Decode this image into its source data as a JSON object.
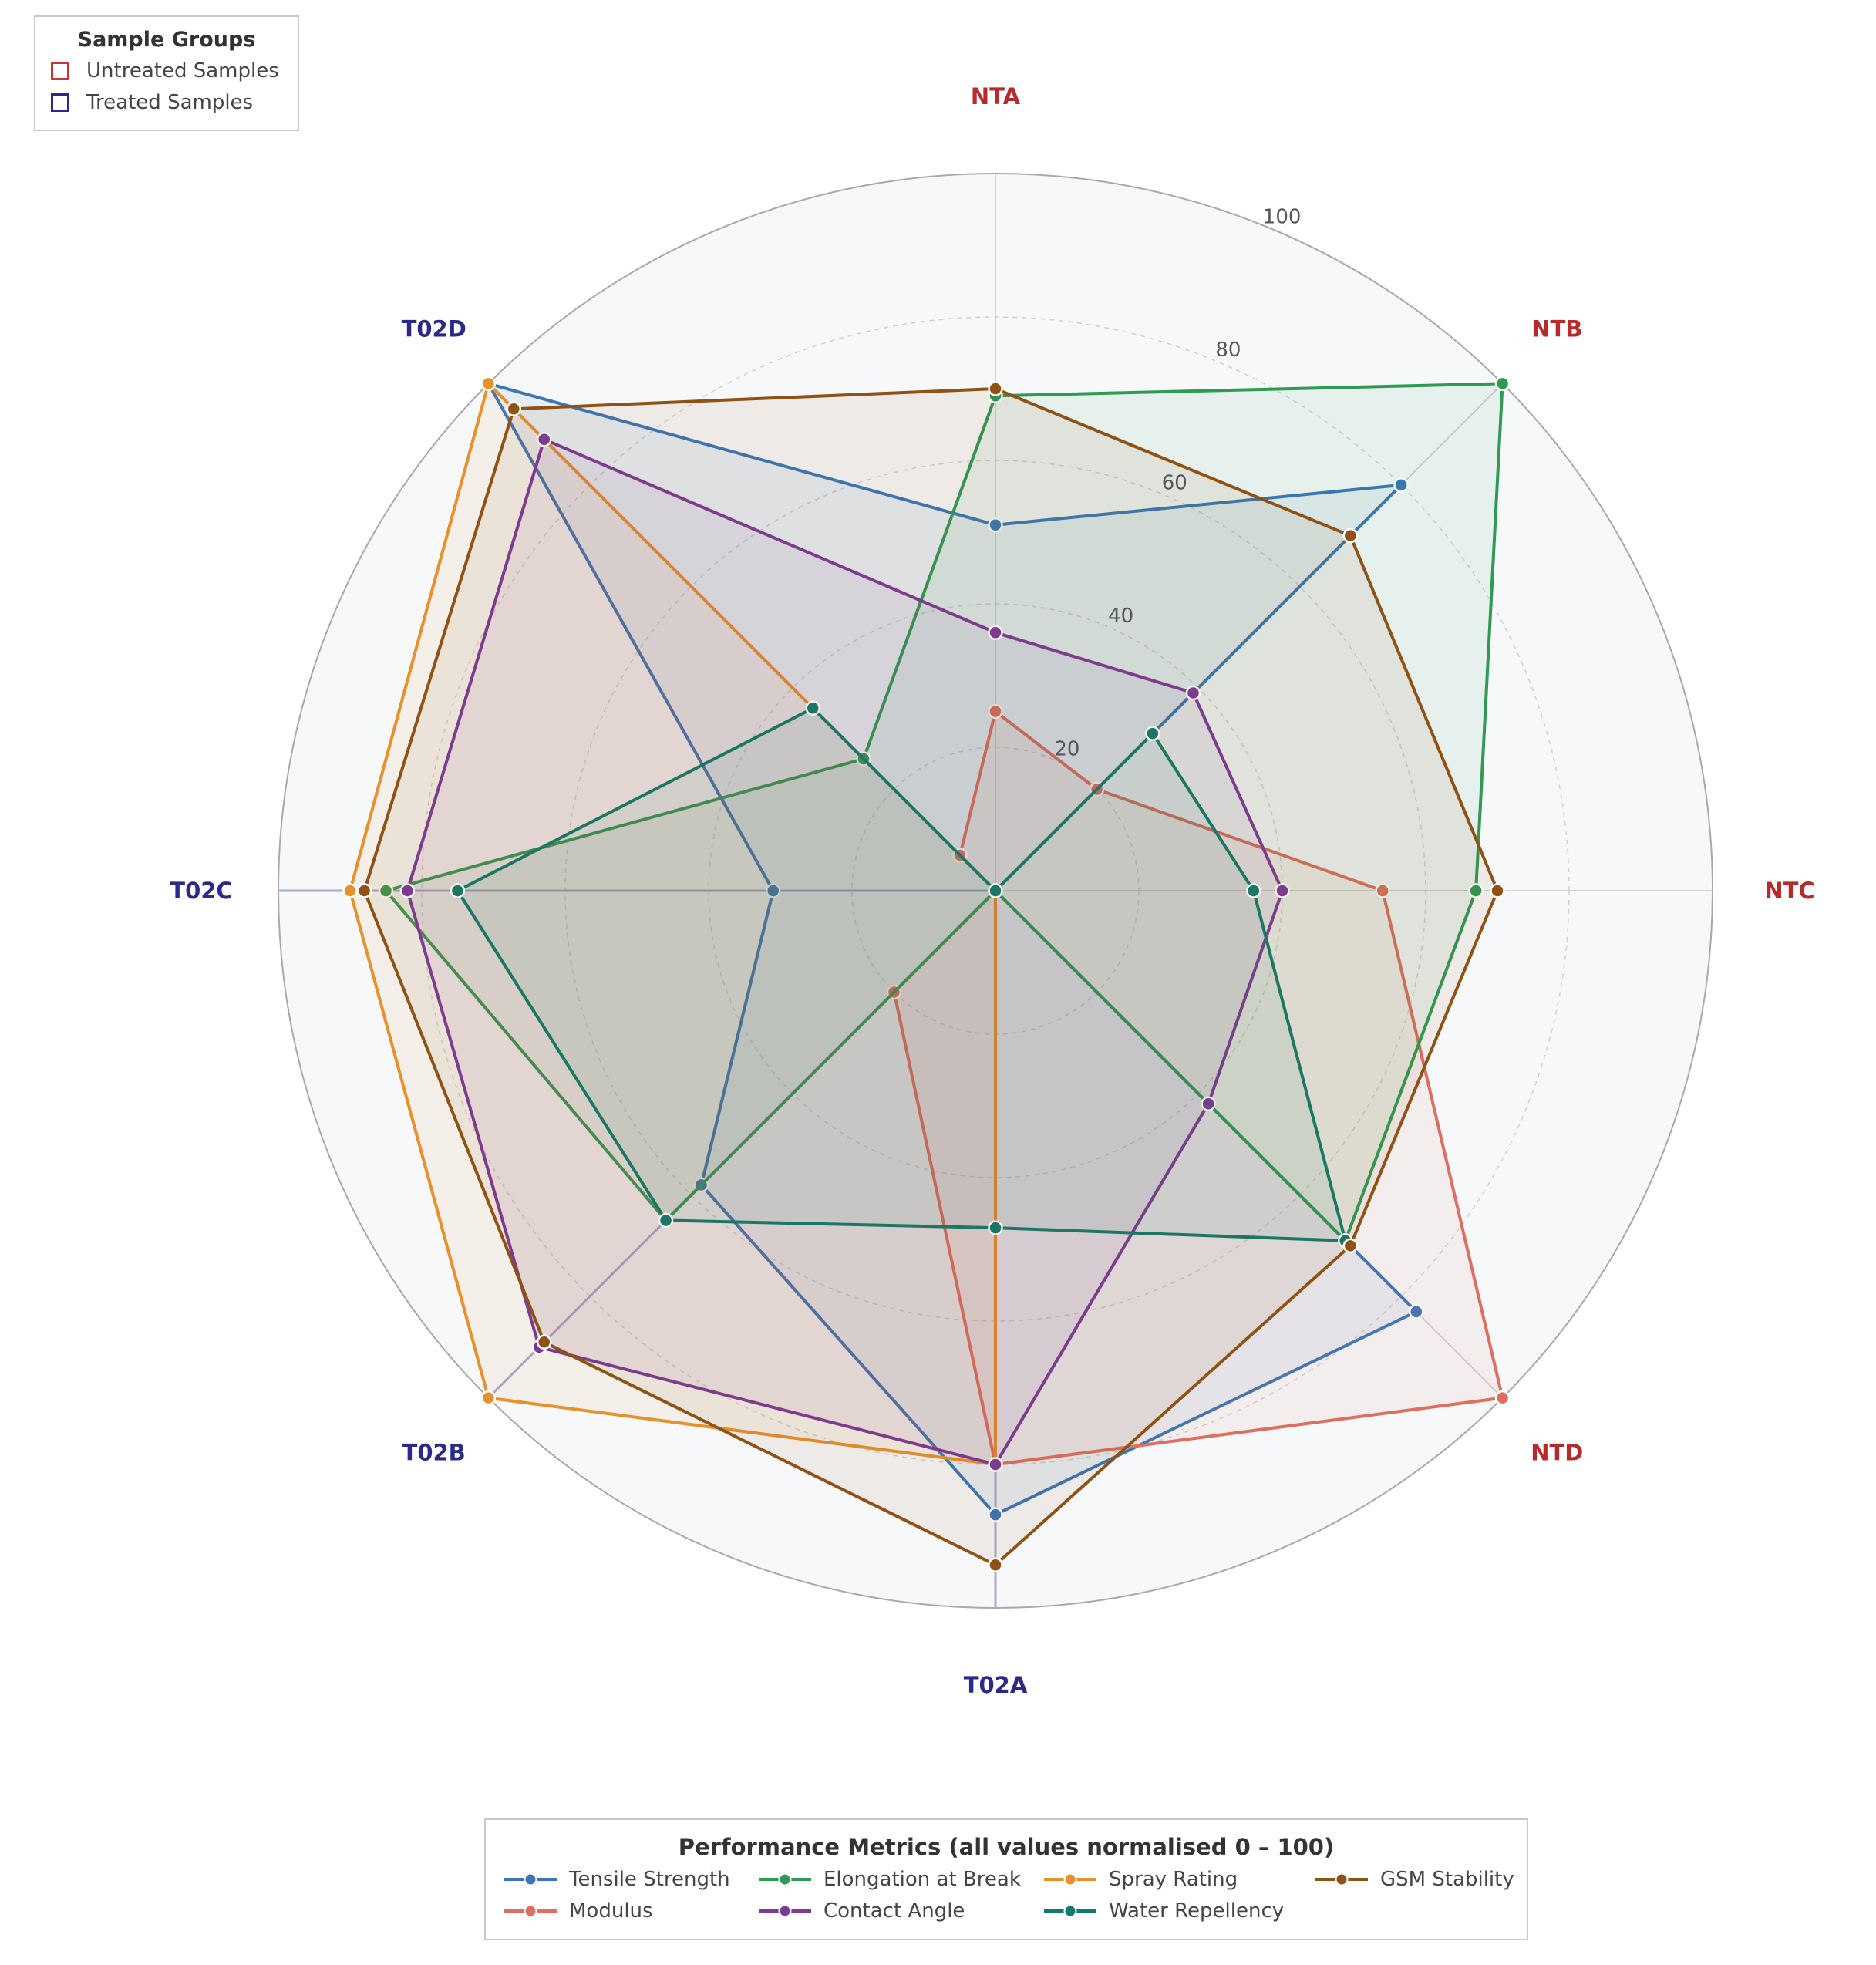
{
  "chart_data": {
    "type": "radar",
    "axes": [
      "NTA",
      "NTB",
      "NTC",
      "NTD",
      "T02A",
      "T02B",
      "T02C",
      "T02D"
    ],
    "axis_groups": [
      "untreated",
      "untreated",
      "untreated",
      "untreated",
      "treated",
      "treated",
      "treated",
      "treated"
    ],
    "rlim": [
      0,
      100
    ],
    "r_ticks": [
      "20",
      "40",
      "60",
      "80",
      "100"
    ],
    "r_tick_values": [
      20,
      40,
      60,
      80,
      100
    ],
    "series": [
      {
        "name": "Tensile Strength",
        "color": "#3a76b8",
        "values": [
          51,
          80,
          0,
          83,
          87,
          58,
          31,
          100
        ]
      },
      {
        "name": "Modulus",
        "color": "#df6e5e",
        "values": [
          25,
          20,
          54,
          100,
          80,
          20,
          0,
          7
        ]
      },
      {
        "name": "Elongation at Break",
        "color": "#2e9a52",
        "values": [
          69,
          100,
          67,
          69,
          0,
          65,
          85,
          26
        ]
      },
      {
        "name": "Spray Rating",
        "color": "#e8902c",
        "values": [
          0,
          0,
          0,
          0,
          80,
          100,
          90,
          100
        ]
      },
      {
        "name": "Contact Angle",
        "color": "#7b3a96",
        "values": [
          36,
          39,
          40,
          42,
          80,
          90,
          82,
          89
        ]
      },
      {
        "name": "Water Repellency",
        "color": "#127a6c",
        "values": [
          0,
          31,
          36,
          69,
          47,
          65,
          75,
          36
        ]
      },
      {
        "name": "GSM Stability",
        "color": "#8f5214",
        "values": [
          70,
          70,
          70,
          70,
          94,
          89,
          88,
          95
        ]
      }
    ],
    "grid": true,
    "legend_position": "bottom"
  },
  "group_legend": {
    "title": "Sample Groups",
    "items": [
      {
        "label": "Untreated Samples",
        "color": "#cc3333"
      },
      {
        "label": "Treated Samples",
        "color": "#2a2a8a"
      }
    ]
  },
  "metric_legend": {
    "title": "Performance Metrics  (all values normalised 0 – 100)"
  },
  "colors": {
    "untreated_label": "#b82a2a",
    "treated_label": "#2a2a8a"
  }
}
